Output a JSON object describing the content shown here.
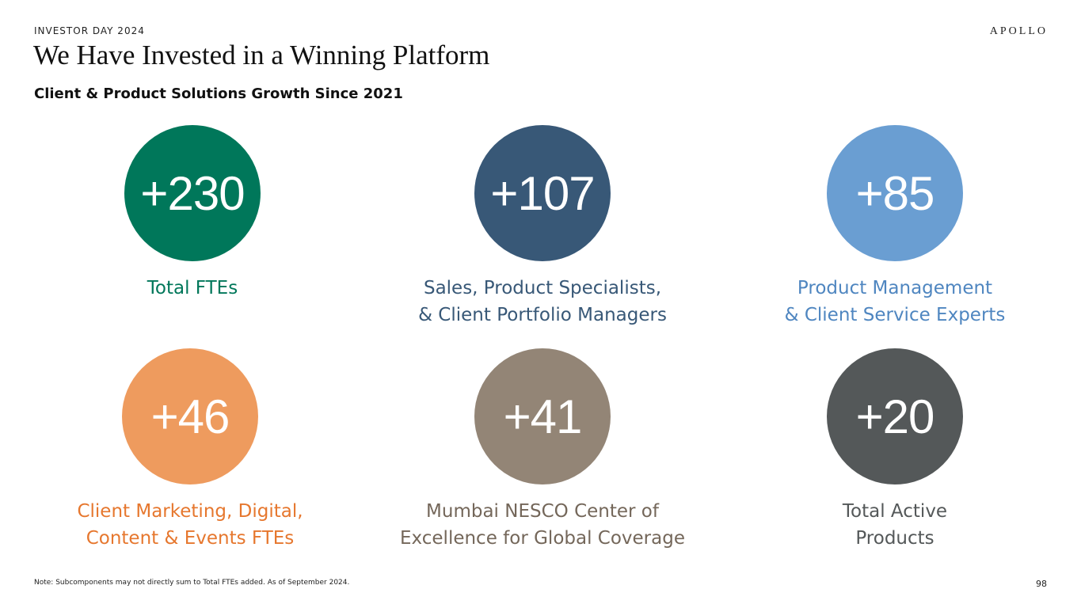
{
  "header": {
    "eyebrow": "INVESTOR DAY 2024",
    "logo": "APOLLO",
    "title": "We Have Invested in a Winning Platform",
    "subtitle": "Client & Product Solutions Growth Since 2021"
  },
  "metrics": [
    {
      "value": "+230",
      "label": "Total FTEs",
      "circle_color": "#00775A",
      "text_color": "#00775A"
    },
    {
      "value": "+107",
      "label": "Sales, Product Specialists,\n& Client Portfolio Managers",
      "circle_color": "#385877",
      "text_color": "#385877"
    },
    {
      "value": "+85",
      "label": "Product Management\n& Client Service Experts",
      "circle_color": "#6A9ED2",
      "text_color": "#4F86C0"
    },
    {
      "value": "+46",
      "label": "Client Marketing, Digital,\nContent & Events FTEs",
      "circle_color": "#EE9B5E",
      "text_color": "#E6772E"
    },
    {
      "value": "+41",
      "label": "Mumbai NESCO Center of\nExcellence for Global Coverage",
      "circle_color": "#938576",
      "text_color": "#74675A"
    },
    {
      "value": "+20",
      "label": "Total Active\nProducts",
      "circle_color": "#545859",
      "text_color": "#545859"
    }
  ],
  "footer": {
    "note": "Note: Subcomponents may not directly sum to Total FTEs added. As of September 2024.",
    "page_number": "98"
  }
}
